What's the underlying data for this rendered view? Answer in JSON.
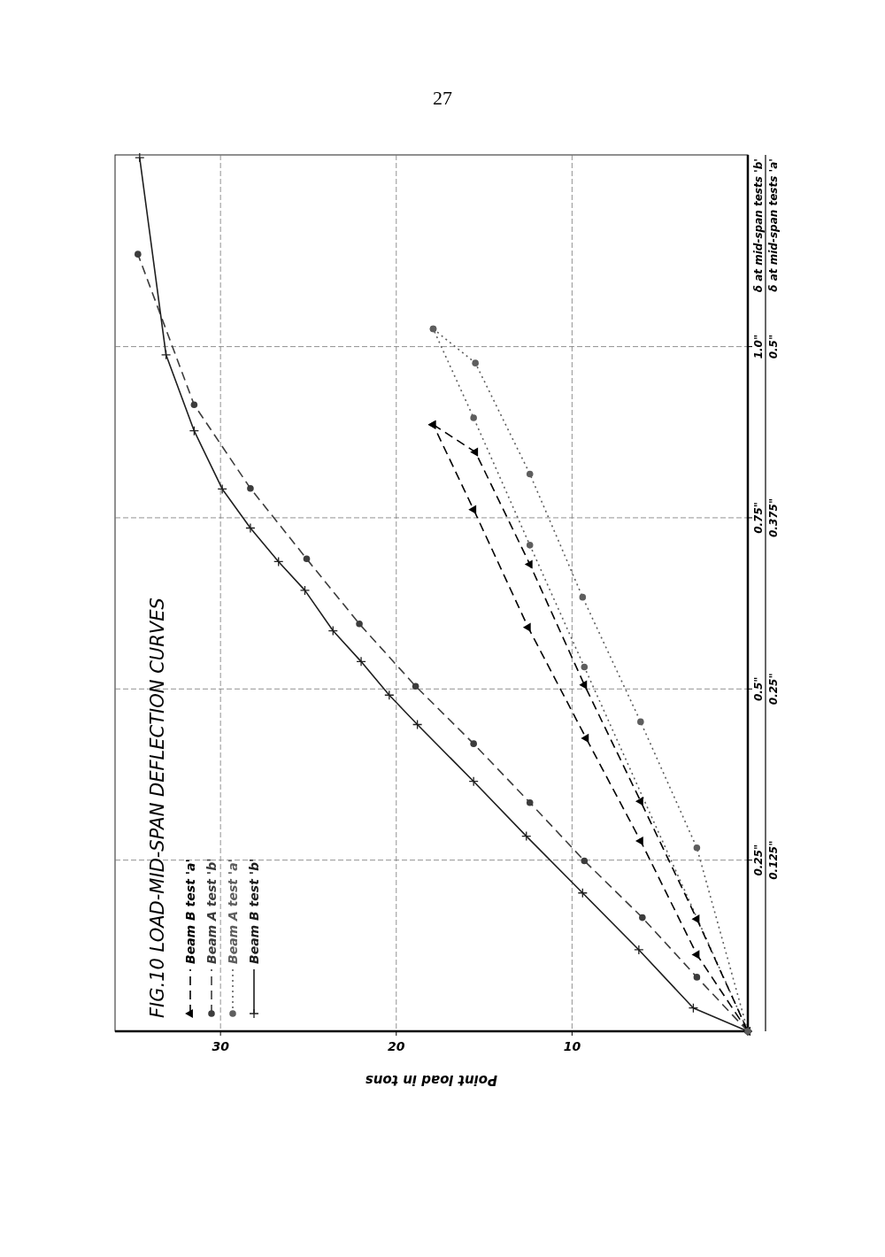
{
  "chart_data": {
    "type": "line",
    "title": "FIG.10  LOAD-MID-SPAN DEFLECTION CURVES",
    "ylabel": "δ at mid-span tests 'b'",
    "y2label": "δ at mid-span tests 'a'",
    "xlabel": "Point load in tons",
    "annotations": [
      "27"
    ],
    "ylim": [
      0,
      1.28
    ],
    "yticks": [
      {
        "value": 0.25,
        "label": "0.25\""
      },
      {
        "value": 0.5,
        "label": "0.5\""
      },
      {
        "value": 0.75,
        "label": "0.75\""
      },
      {
        "value": 1.0,
        "label": "1.0\""
      }
    ],
    "y2lim": [
      0,
      0.64
    ],
    "y2ticks": [
      {
        "value": 0.125,
        "label": "0.125\""
      },
      {
        "value": 0.25,
        "label": "0.25\""
      },
      {
        "value": 0.375,
        "label": "0.375\""
      },
      {
        "value": 0.5,
        "label": "0.5\""
      }
    ],
    "xlim": [
      36,
      0
    ],
    "xticks": [
      10,
      20,
      30
    ],
    "grid": true,
    "legend": "bottom left",
    "series": [
      {
        "name": "Beam B test 'a'",
        "color": "#000000",
        "axis": "y2",
        "marker": "triangle",
        "line_style": "dashed",
        "values": [
          0,
          0.056,
          0.139,
          0.214,
          0.295,
          0.381,
          0.443
        ],
        "x": [
          0,
          2.9,
          6.1,
          9.2,
          12.5,
          15.6,
          17.9
        ]
      },
      {
        "name": "Beam A test 'b'",
        "color": "#3c3c3c",
        "marker": "circle",
        "line_style": "dashed",
        "values": [
          0,
          0.079,
          0.166,
          0.249,
          0.334,
          0.42,
          0.504,
          0.595,
          0.69,
          0.793,
          0.915,
          1.135
        ],
        "x": [
          0,
          2.9,
          6.0,
          9.3,
          12.4,
          15.6,
          18.9,
          22.1,
          25.1,
          28.3,
          31.5,
          34.7
        ]
      },
      {
        "name": "Beam A test 'a'",
        "color": "#5e5e5e",
        "axis": "y2",
        "marker": "circle",
        "line_style": "dotted",
        "values": [
          0,
          0.266,
          0.355,
          0.448,
          0.513
        ],
        "x": [
          0,
          9.3,
          12.4,
          15.6,
          17.9
        ]
      },
      {
        "name": "Beam B test 'b'",
        "color": "#1f1f1f",
        "marker": "cross",
        "line_style": "solid",
        "values": [
          0,
          0.034,
          0.119,
          0.202,
          0.285,
          0.365,
          0.448,
          0.491,
          0.54,
          0.585,
          0.644,
          0.686,
          0.735,
          0.792,
          0.877,
          0.988,
          1.276
        ],
        "x": [
          0,
          3.1,
          6.2,
          9.4,
          12.6,
          15.6,
          18.8,
          20.4,
          22.0,
          23.6,
          25.2,
          26.7,
          28.3,
          29.9,
          31.5,
          33.1,
          34.6
        ]
      },
      {
        "color": "#000000",
        "axis": "y2",
        "marker": "triangle",
        "line_style": "dashed",
        "values": [
          0.443,
          0.423,
          0.341,
          0.253,
          0.168,
          0.082,
          0
        ],
        "x": [
          17.9,
          15.5,
          12.4,
          9.3,
          6.1,
          2.9,
          0
        ]
      },
      {
        "color": "#5e5e5e",
        "axis": "y2",
        "marker": "circle",
        "line_style": "dotted",
        "values": [
          0.513,
          0.488,
          0.407,
          0.317,
          0.226,
          0.134,
          0
        ],
        "x": [
          17.9,
          15.5,
          12.4,
          9.4,
          6.1,
          2.9,
          0
        ]
      }
    ]
  }
}
